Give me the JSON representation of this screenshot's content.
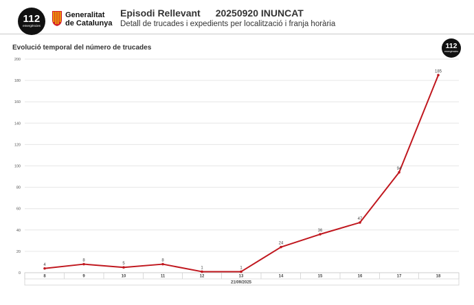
{
  "header": {
    "logo_number": "112",
    "logo_sub": "emergències",
    "gencat_line1": "Generalitat",
    "gencat_line2": "de Catalunya",
    "title": "Episodi Rellevant",
    "code": "20250920 INUNCAT",
    "subtitle": "Detall de trucades i expedients per localització i franja horària"
  },
  "chart_title": "Evolució temporal del número de trucades",
  "colors": {
    "line": "#c0171e",
    "grid": "#e6e6e6",
    "emblem_red": "#d4202a",
    "emblem_yellow": "#f4c300"
  },
  "chart_data": {
    "type": "line",
    "title": "Evolució temporal del número de trucades",
    "categories": [
      "8",
      "9",
      "10",
      "11",
      "12",
      "13",
      "14",
      "15",
      "16",
      "17",
      "18"
    ],
    "x_group_label": "21/09/2025",
    "values": [
      4,
      8,
      5,
      8,
      1,
      1,
      24,
      36,
      47,
      94,
      185
    ],
    "labels": [
      "4",
      "8",
      "5",
      "8",
      "1",
      "1",
      "24",
      "36",
      "47",
      "94",
      "185"
    ],
    "ylim": [
      0,
      200
    ],
    "yticks": [
      "0",
      "20",
      "40",
      "60",
      "80",
      "100",
      "120",
      "140",
      "160",
      "180",
      "200"
    ],
    "grid": true
  }
}
